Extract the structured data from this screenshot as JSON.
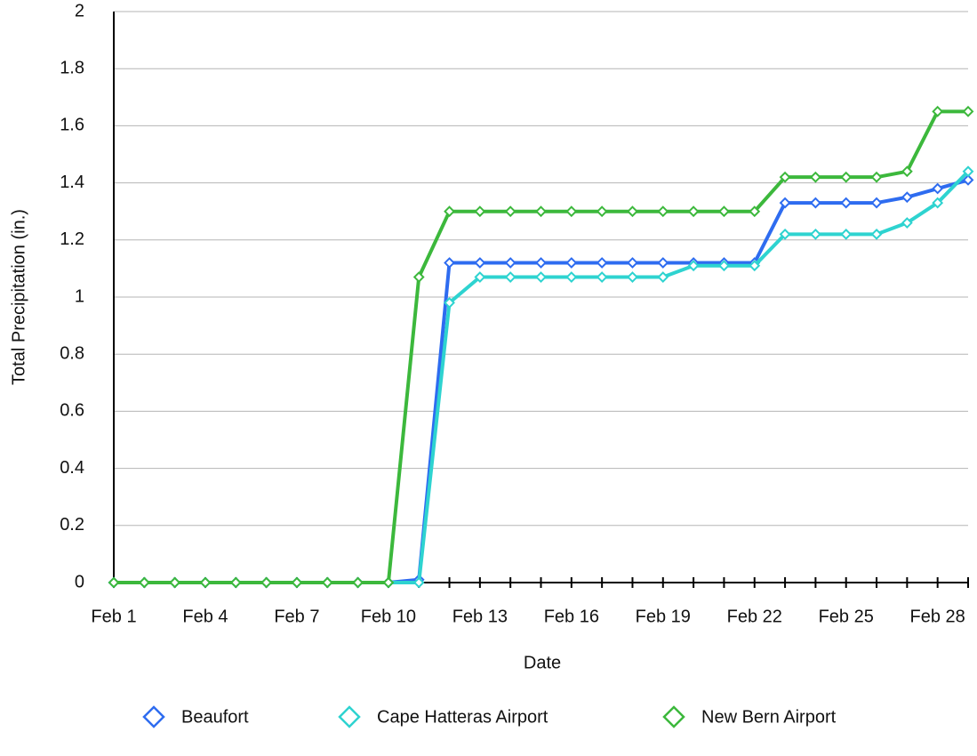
{
  "chart_data": {
    "type": "line",
    "x_label": "Date",
    "y_label": "Total Precipitation (in.)",
    "categories": [
      "Feb 1",
      null,
      null,
      "Feb 4",
      null,
      null,
      "Feb 7",
      null,
      null,
      "Feb 10",
      null,
      null,
      "Feb 13",
      null,
      null,
      "Feb 16",
      null,
      null,
      "Feb 19",
      null,
      null,
      "Feb 22",
      null,
      null,
      "Feb 25",
      null,
      null,
      "Feb 28",
      null
    ],
    "series": [
      {
        "name": "Beaufort",
        "color": "#2e6cf0",
        "values": [
          0,
          0,
          0,
          0,
          0,
          0,
          0,
          0,
          0,
          0,
          0.01,
          1.12,
          1.12,
          1.12,
          1.12,
          1.12,
          1.12,
          1.12,
          1.12,
          1.12,
          1.12,
          1.12,
          1.33,
          1.33,
          1.33,
          1.33,
          1.35,
          1.38,
          1.41
        ]
      },
      {
        "name": "Cape Hatteras Airport",
        "color": "#2ed3d0",
        "values": [
          0,
          0,
          0,
          0,
          0,
          0,
          0,
          0,
          0,
          0,
          0,
          0.98,
          1.07,
          1.07,
          1.07,
          1.07,
          1.07,
          1.07,
          1.07,
          1.11,
          1.11,
          1.11,
          1.22,
          1.22,
          1.22,
          1.22,
          1.26,
          1.33,
          1.44
        ]
      },
      {
        "name": "New Bern Airport",
        "color": "#3cb83c",
        "values": [
          0,
          0,
          0,
          0,
          0,
          0,
          0,
          0,
          0,
          0,
          1.07,
          1.3,
          1.3,
          1.3,
          1.3,
          1.3,
          1.3,
          1.3,
          1.3,
          1.3,
          1.3,
          1.3,
          1.42,
          1.42,
          1.42,
          1.42,
          1.44,
          1.65,
          1.65
        ]
      }
    ],
    "ylim": [
      0,
      2
    ],
    "yticks": [
      0,
      0.2,
      0.4,
      0.6,
      0.8,
      1,
      1.2,
      1.4,
      1.6,
      1.8,
      2
    ],
    "grid": true,
    "legend": "bottom"
  }
}
